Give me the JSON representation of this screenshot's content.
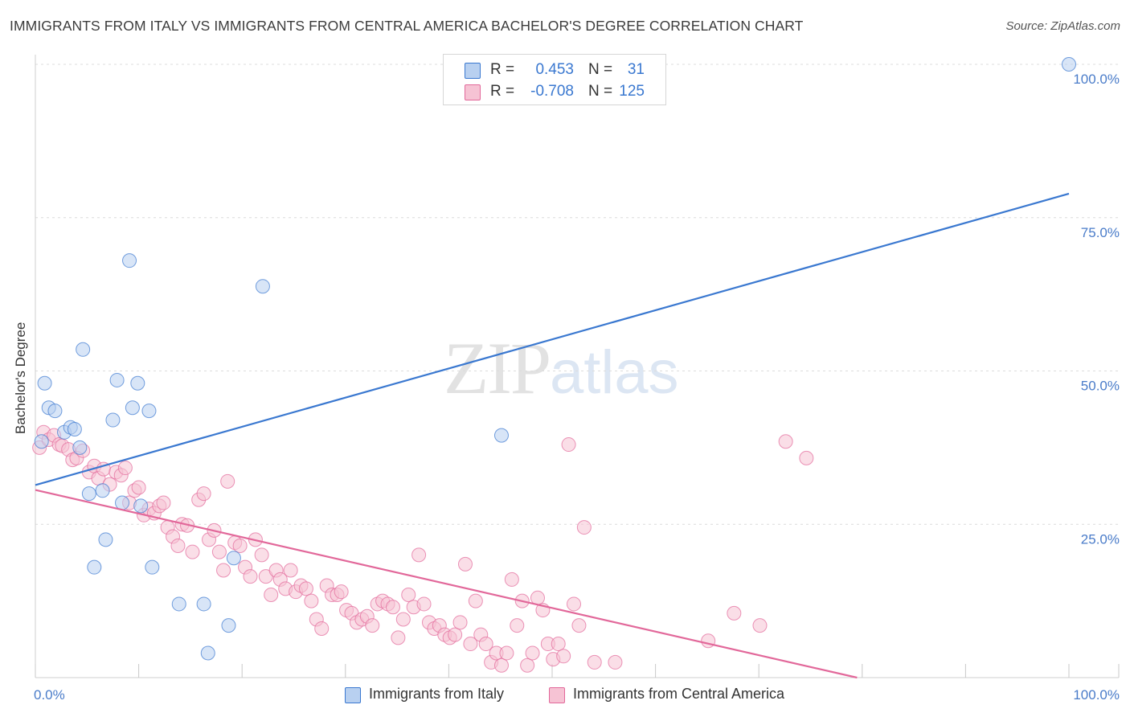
{
  "title": "IMMIGRANTS FROM ITALY VS IMMIGRANTS FROM CENTRAL AMERICA BACHELOR'S DEGREE CORRELATION CHART",
  "source": "Source: ZipAtlas.com",
  "watermark": {
    "zip": "ZIP",
    "atlas": "atlas"
  },
  "colors": {
    "blue": "#3a78d0",
    "blue_fill": "#b8d0f0",
    "pink": "#e2689a",
    "pink_fill": "#f6c3d4",
    "tick_text": "#4a7cc9"
  },
  "legend": {
    "rows": [
      {
        "r_label": "R =",
        "r_value": "0.453",
        "n_label": "N =",
        "n_value": "31"
      },
      {
        "r_label": "R =",
        "r_value": "-0.708",
        "n_label": "N =",
        "n_value": "125"
      }
    ]
  },
  "chart_data": {
    "type": "scatter",
    "title": "IMMIGRANTS FROM ITALY VS IMMIGRANTS FROM CENTRAL AMERICA BACHELOR'S DEGREE CORRELATION CHART",
    "xlabel": "",
    "ylabel": "Bachelor's Degree",
    "xlim": [
      0,
      100
    ],
    "ylim": [
      0,
      100
    ],
    "x_tick_labels": [
      "0.0%",
      "100.0%"
    ],
    "y_tick_values": [
      25,
      50,
      75,
      100
    ],
    "y_tick_labels": [
      "25.0%",
      "50.0%",
      "75.0%",
      "100.0%"
    ],
    "grid": true,
    "legend_position": "top-center",
    "series": [
      {
        "name": "Immigrants from Italy",
        "color": "#3a78d0",
        "r": 0.453,
        "n": 31,
        "trend": {
          "x0": 0,
          "y0": 31.4,
          "x1": 100,
          "y1": 78.9
        },
        "points": [
          [
            0.6,
            38.5
          ],
          [
            0.9,
            48.0
          ],
          [
            1.3,
            44.0
          ],
          [
            1.9,
            43.5
          ],
          [
            2.8,
            40.0
          ],
          [
            3.4,
            40.8
          ],
          [
            3.8,
            40.5
          ],
          [
            4.3,
            37.5
          ],
          [
            4.6,
            53.5
          ],
          [
            5.2,
            30.0
          ],
          [
            5.7,
            18.0
          ],
          [
            6.5,
            30.5
          ],
          [
            6.8,
            22.5
          ],
          [
            7.5,
            42.0
          ],
          [
            7.9,
            48.5
          ],
          [
            8.4,
            28.5
          ],
          [
            9.1,
            68.0
          ],
          [
            9.4,
            44.0
          ],
          [
            9.9,
            48.0
          ],
          [
            10.2,
            28.0
          ],
          [
            11.3,
            18.0
          ],
          [
            11.0,
            43.5
          ],
          [
            13.9,
            12.0
          ],
          [
            16.3,
            12.0
          ],
          [
            16.7,
            4.0
          ],
          [
            18.7,
            8.5
          ],
          [
            19.2,
            19.5
          ],
          [
            22.0,
            63.8
          ],
          [
            45.1,
            39.5
          ],
          [
            100,
            100
          ]
        ]
      },
      {
        "name": "Immigrants from Central America",
        "color": "#e2689a",
        "r": -0.708,
        "n": 125,
        "trend": {
          "x0": 0,
          "y0": 30.6,
          "x1": 79.5,
          "y1": 0
        },
        "points": [
          [
            0.4,
            37.5
          ],
          [
            0.8,
            40.0
          ],
          [
            1.3,
            38.8
          ],
          [
            1.8,
            39.5
          ],
          [
            2.3,
            38.0
          ],
          [
            2.6,
            37.8
          ],
          [
            3.2,
            37.2
          ],
          [
            3.6,
            35.5
          ],
          [
            4.0,
            35.8
          ],
          [
            4.6,
            37.0
          ],
          [
            5.2,
            33.5
          ],
          [
            5.7,
            34.5
          ],
          [
            6.1,
            32.5
          ],
          [
            6.6,
            34.0
          ],
          [
            7.2,
            31.5
          ],
          [
            7.8,
            33.5
          ],
          [
            8.3,
            33.0
          ],
          [
            8.7,
            34.2
          ],
          [
            9.1,
            28.5
          ],
          [
            9.6,
            30.5
          ],
          [
            10.0,
            31.0
          ],
          [
            10.5,
            26.5
          ],
          [
            11.0,
            27.5
          ],
          [
            11.5,
            26.8
          ],
          [
            12.0,
            28.0
          ],
          [
            12.4,
            28.5
          ],
          [
            12.8,
            24.5
          ],
          [
            13.3,
            23.0
          ],
          [
            13.8,
            21.5
          ],
          [
            14.2,
            25.0
          ],
          [
            14.7,
            24.8
          ],
          [
            15.2,
            20.5
          ],
          [
            15.8,
            29.0
          ],
          [
            16.3,
            30.0
          ],
          [
            16.8,
            22.5
          ],
          [
            17.3,
            24.0
          ],
          [
            17.8,
            20.5
          ],
          [
            18.2,
            17.5
          ],
          [
            18.6,
            32.0
          ],
          [
            19.3,
            22.0
          ],
          [
            19.8,
            21.5
          ],
          [
            20.3,
            18.0
          ],
          [
            20.8,
            16.5
          ],
          [
            21.3,
            22.5
          ],
          [
            21.9,
            20.0
          ],
          [
            22.3,
            16.5
          ],
          [
            22.8,
            13.5
          ],
          [
            23.3,
            17.5
          ],
          [
            23.7,
            16.0
          ],
          [
            24.2,
            14.5
          ],
          [
            24.7,
            17.5
          ],
          [
            25.2,
            14.0
          ],
          [
            25.7,
            15.0
          ],
          [
            26.2,
            14.5
          ],
          [
            26.7,
            12.5
          ],
          [
            27.2,
            9.5
          ],
          [
            27.7,
            8.0
          ],
          [
            28.2,
            15.0
          ],
          [
            28.7,
            13.5
          ],
          [
            29.2,
            13.5
          ],
          [
            29.6,
            14.0
          ],
          [
            30.1,
            11.0
          ],
          [
            30.6,
            10.5
          ],
          [
            31.1,
            9.0
          ],
          [
            31.6,
            9.5
          ],
          [
            32.1,
            10.0
          ],
          [
            32.6,
            8.5
          ],
          [
            33.1,
            12.0
          ],
          [
            33.6,
            12.5
          ],
          [
            34.1,
            12.0
          ],
          [
            34.6,
            11.5
          ],
          [
            35.1,
            6.5
          ],
          [
            35.6,
            9.5
          ],
          [
            36.1,
            13.5
          ],
          [
            36.6,
            11.5
          ],
          [
            37.1,
            20.0
          ],
          [
            37.6,
            12.0
          ],
          [
            38.1,
            9.0
          ],
          [
            38.6,
            8.0
          ],
          [
            39.1,
            8.5
          ],
          [
            39.6,
            7.0
          ],
          [
            40.1,
            6.5
          ],
          [
            40.6,
            7.0
          ],
          [
            41.1,
            9.0
          ],
          [
            41.6,
            18.5
          ],
          [
            42.1,
            5.5
          ],
          [
            42.6,
            12.5
          ],
          [
            43.1,
            7.0
          ],
          [
            43.6,
            5.5
          ],
          [
            44.1,
            2.5
          ],
          [
            44.6,
            4.0
          ],
          [
            45.1,
            2.0
          ],
          [
            45.6,
            4.0
          ],
          [
            46.1,
            16.0
          ],
          [
            46.6,
            8.5
          ],
          [
            47.1,
            12.5
          ],
          [
            47.6,
            2.0
          ],
          [
            48.1,
            4.0
          ],
          [
            48.6,
            13.0
          ],
          [
            49.1,
            11.0
          ],
          [
            49.6,
            5.5
          ],
          [
            50.1,
            3.0
          ],
          [
            50.6,
            5.5
          ],
          [
            51.1,
            3.5
          ],
          [
            51.6,
            38.0
          ],
          [
            52.1,
            12.0
          ],
          [
            52.6,
            8.5
          ],
          [
            53.1,
            24.5
          ],
          [
            54.1,
            2.5
          ],
          [
            56.1,
            2.5
          ],
          [
            65.1,
            6.0
          ],
          [
            67.6,
            10.5
          ],
          [
            70.1,
            8.5
          ],
          [
            72.6,
            38.5
          ],
          [
            74.6,
            35.8
          ]
        ]
      }
    ]
  },
  "bottom_legend": [
    {
      "label": "Immigrants from Italy"
    },
    {
      "label": "Immigrants from Central America"
    }
  ]
}
